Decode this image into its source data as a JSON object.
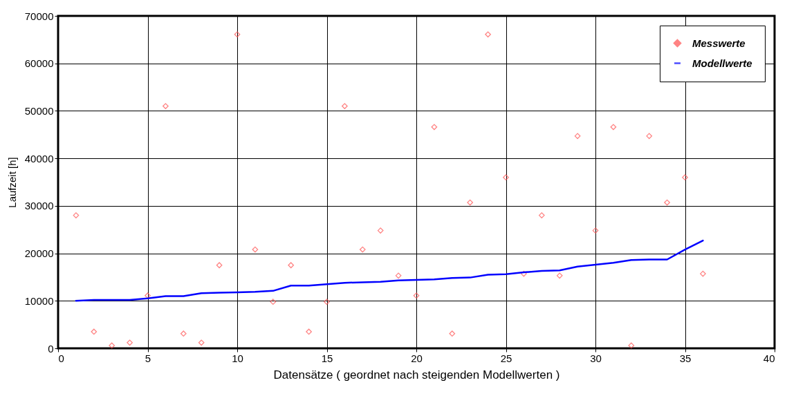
{
  "chart_data": {
    "type": "scatter",
    "xlabel": "Datensätze    ( geordnet nach steigenden Modellwerten )",
    "ylabel": "Laufzeit [h]",
    "x": [
      1,
      2,
      3,
      4,
      5,
      6,
      7,
      8,
      9,
      10,
      11,
      12,
      13,
      14,
      15,
      16,
      17,
      18,
      19,
      20,
      21,
      22,
      23,
      24,
      25,
      26,
      27,
      28,
      29,
      30,
      31,
      32,
      33,
      34,
      35,
      36
    ],
    "series": [
      {
        "name": "Messwerte",
        "marker": "diamond",
        "color": "#ff5050",
        "values": [
          28000,
          3500,
          600,
          1200,
          11100,
          51000,
          3100,
          1200,
          17500,
          66100,
          20800,
          9800,
          17500,
          3500,
          9800,
          51000,
          20800,
          24800,
          15300,
          11100,
          46600,
          3100,
          30700,
          66100,
          36000,
          15700,
          28000,
          15300,
          44700,
          24800,
          46600,
          600,
          44700,
          30700,
          36000,
          15700
        ]
      },
      {
        "name": "Modellwerte",
        "type": "line",
        "line_style": "solid",
        "color": "#0000ff",
        "values": [
          10000,
          10200,
          10200,
          10200,
          10500,
          11000,
          11000,
          11600,
          11700,
          11800,
          11900,
          12100,
          13200,
          13200,
          13500,
          13800,
          13900,
          14000,
          14300,
          14400,
          14500,
          14800,
          14900,
          15500,
          15600,
          16000,
          16300,
          16400,
          17200,
          17600,
          18000,
          18600,
          18700,
          18700,
          20800,
          22700
        ]
      }
    ],
    "xlim": [
      0,
      40
    ],
    "xticks": [
      0,
      5,
      10,
      15,
      20,
      25,
      30,
      35,
      40
    ],
    "ylim": [
      0,
      70000
    ],
    "yticks": [
      0,
      10000,
      20000,
      30000,
      40000,
      50000,
      60000,
      70000
    ],
    "grid": true,
    "legend": "top right"
  }
}
